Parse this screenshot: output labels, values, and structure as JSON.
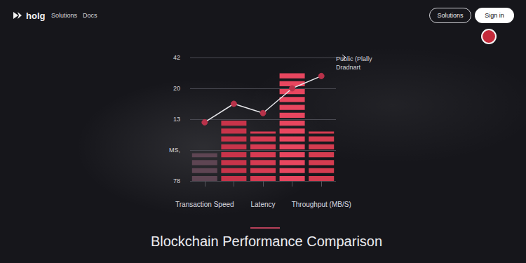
{
  "page": {
    "brand": "holg",
    "nav": [
      "Solutions",
      "Docs"
    ],
    "buttons": [
      "Solutions",
      "Sign in"
    ]
  },
  "chart_data": {
    "type": "bar",
    "title": "Blockchain Performance Comparison",
    "annotations": [
      "Public (Plally",
      "Dradnart"
    ],
    "categories": [
      "Transaction Speed",
      null,
      "Latency",
      null,
      "Throughput (MB/S)"
    ],
    "y_categories": [
      "78",
      "MS,",
      "13",
      "20",
      "42"
    ],
    "ylim": [
      0,
      4
    ],
    "grid": true,
    "series": [
      {
        "type": "bar",
        "colors": [
          "#5e4553",
          "#c8344a",
          "#d63b52",
          "#e8465f",
          "#d43c50"
        ],
        "values": [
          0.9,
          2.0,
          1.6,
          3.5,
          1.6
        ]
      },
      {
        "type": "line",
        "color": "#e6e6ea",
        "marker": "circle",
        "values": [
          1.9,
          2.5,
          2.2,
          3.0,
          3.4
        ]
      }
    ]
  }
}
